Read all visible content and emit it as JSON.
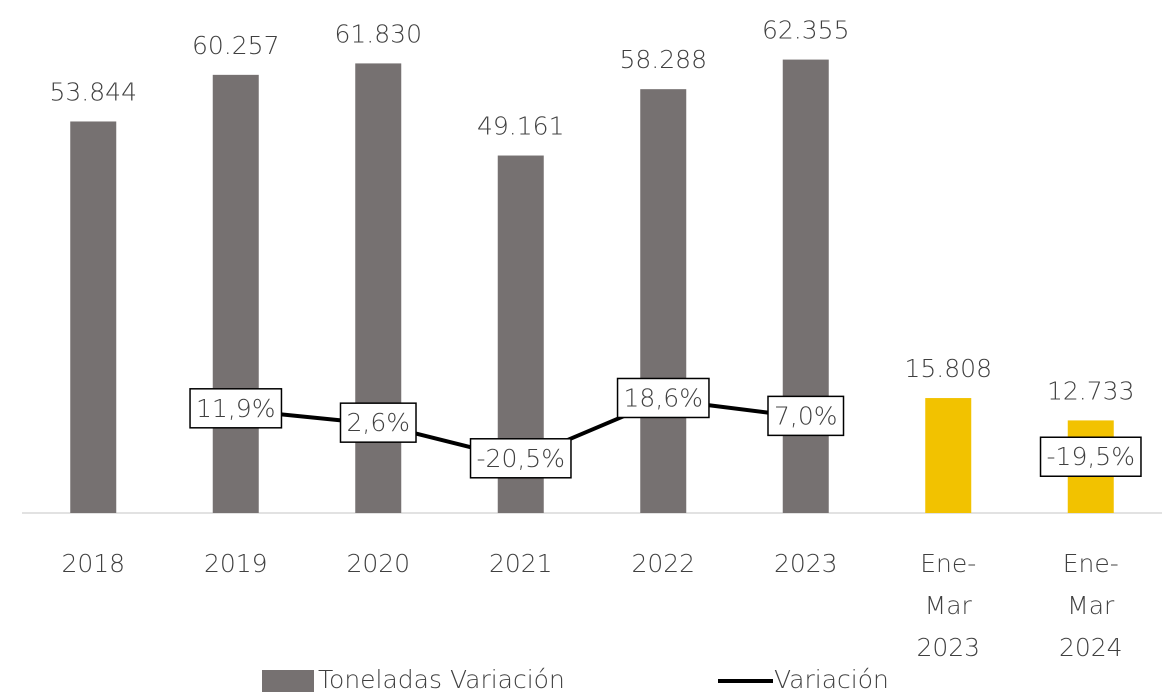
{
  "chart_data": {
    "type": "bar",
    "categories": [
      "2018",
      "2019",
      "2020",
      "2021",
      "2022",
      "2023",
      "Ene-Mar 2023",
      "Ene-Mar 2024"
    ],
    "series": [
      {
        "name": "Toneladas Variación",
        "type": "bar",
        "color": "#767171",
        "colors": [
          "#767171",
          "#767171",
          "#767171",
          "#767171",
          "#767171",
          "#767171",
          "#f2c200",
          "#f2c200"
        ],
        "values": [
          53844,
          60257,
          61830,
          49161,
          58288,
          62355,
          15808,
          12733
        ],
        "value_labels": [
          "53.844",
          "60.257",
          "61.830",
          "49.161",
          "58.288",
          "62.355",
          "15.808",
          "12.733"
        ]
      },
      {
        "name": "Variación",
        "type": "line",
        "axis": "y2",
        "color": "#000000",
        "values": [
          null,
          11.9,
          2.6,
          -20.5,
          18.6,
          7.0,
          null,
          -19.5
        ],
        "value_labels": [
          null,
          "11,9%",
          "2,6%",
          "-20,5%",
          "18,6%",
          "7,0%",
          null,
          "-19,5%"
        ]
      }
    ],
    "ylim": [
      0,
      70000
    ],
    "y2lim": [
      -55,
      275
    ],
    "grid": false,
    "legend": "bottom"
  }
}
